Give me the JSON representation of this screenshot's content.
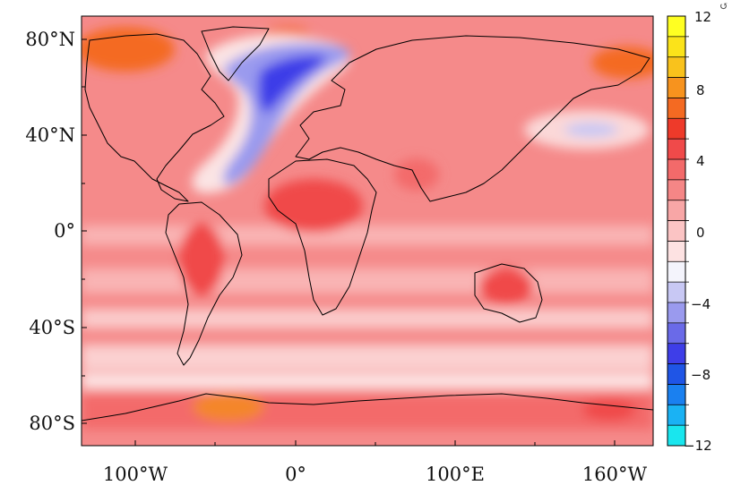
{
  "map": {
    "lat_ticks": [
      "80°N",
      "40°N",
      "0°",
      "40°S",
      "80°S"
    ],
    "lon_ticks": [
      "100°W",
      "0°",
      "100°E",
      "160°W"
    ]
  },
  "colorbar": {
    "labels": [
      "12",
      "8",
      "4",
      "0",
      "−4",
      "−8",
      "−12"
    ],
    "levels": [
      -12,
      -10,
      -8,
      -6,
      -4,
      -2,
      -1,
      0,
      1,
      2,
      3,
      4,
      5,
      6,
      7,
      8,
      9,
      10,
      11,
      12
    ],
    "colors": [
      "#19e6ee",
      "#1ab2f4",
      "#1a80f0",
      "#1f55e6",
      "#3e3ee8",
      "#6a6ae8",
      "#9a9aee",
      "#c8c8f4",
      "#f4f4fc",
      "#fde2e2",
      "#fbc4c4",
      "#f8a6a6",
      "#f58686",
      "#f36a6a",
      "#f04a4a",
      "#ee3a2a",
      "#f46a22",
      "#f7931e",
      "#f9c21c",
      "#fbe31a",
      "#ffff22"
    ]
  }
}
